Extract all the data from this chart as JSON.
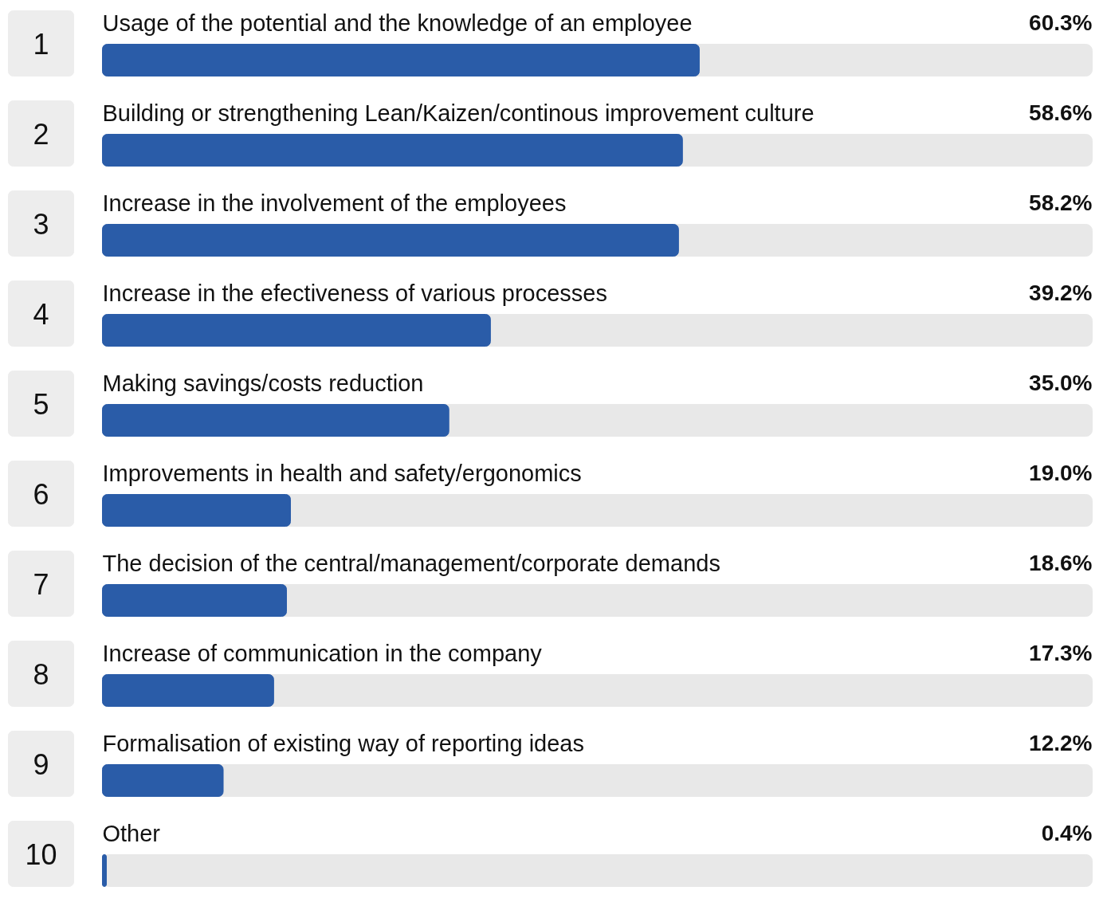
{
  "chart_data": {
    "type": "bar",
    "orientation": "horizontal",
    "color": "#2a5ca8",
    "xlim": [
      0,
      100
    ],
    "tick_labels": false,
    "grid": false,
    "data_labels": true,
    "categories": [
      "Usage of the potential and the knowledge of an employee",
      "Building or strengthening Lean/Kaizen/continous improvement culture",
      "Increase in the involvement of the employees",
      "Increase in the efectiveness of various processes",
      "Making savings/costs reduction",
      "Improvements in health and safety/ergonomics",
      "The decision of the central/management/corporate demands",
      "Increase of communication in the company",
      "Formalisation of existing way of reporting ideas",
      "Other"
    ],
    "values": [
      60.3,
      58.6,
      58.2,
      39.2,
      35.0,
      19.0,
      18.6,
      17.3,
      12.2,
      0.4
    ],
    "value_labels": [
      "60.3%",
      "58.6%",
      "58.2%",
      "39.2%",
      "35.0%",
      "19.0%",
      "18.6%",
      "17.3%",
      "12.2%",
      "0.4%"
    ],
    "annotations": [
      "1",
      "2",
      "3",
      "4",
      "5",
      "6",
      "7",
      "8",
      "9",
      "10"
    ]
  }
}
